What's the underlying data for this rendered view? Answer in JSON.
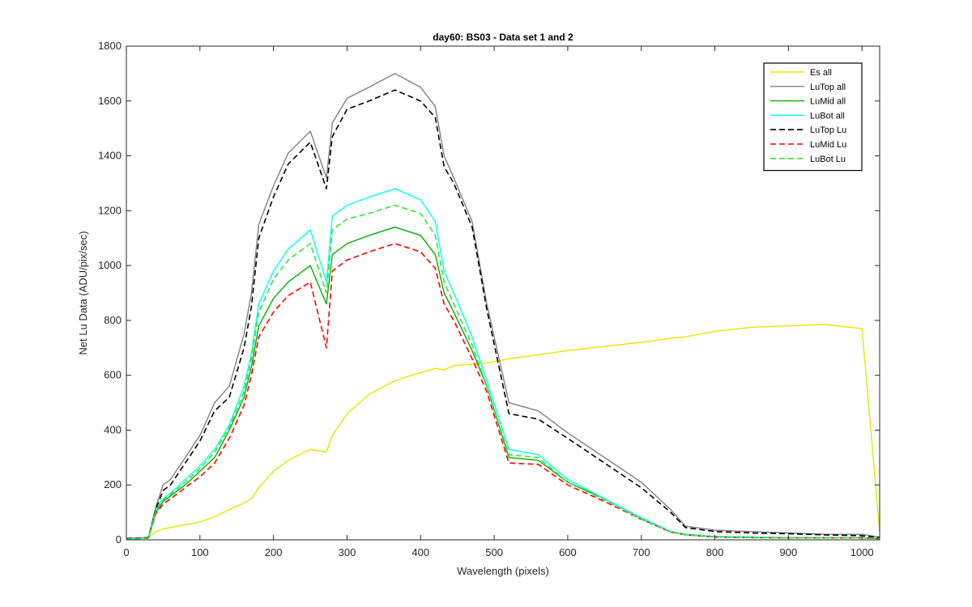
{
  "chart_data": {
    "type": "line",
    "title": "day60: BS03 - Data set 1 and 2",
    "xlabel": "Wavelength (pixels)",
    "ylabel": "Net Lu Data (ADU/pix/sec)",
    "xlim": [
      0,
      1024
    ],
    "ylim": [
      0,
      1800
    ],
    "xticks": [
      "0",
      "100",
      "200",
      "300",
      "400",
      "500",
      "600",
      "700",
      "800",
      "900",
      "1000"
    ],
    "yticks": [
      "0",
      "200",
      "400",
      "600",
      "800",
      "1000",
      "1200",
      "1400",
      "1600",
      "1800"
    ],
    "grid": false,
    "legend_position": "top-right",
    "x": [
      0,
      30,
      40,
      50,
      60,
      80,
      100,
      120,
      140,
      160,
      170,
      180,
      200,
      220,
      250,
      272,
      280,
      300,
      330,
      365,
      400,
      420,
      432,
      445,
      470,
      490,
      520,
      560,
      600,
      650,
      700,
      740,
      760,
      800,
      850,
      900,
      950,
      1000,
      1024
    ],
    "series": [
      {
        "name": "Es  all",
        "color": "#e6e600",
        "dash": "solid",
        "width": 1.4,
        "values": [
          5,
          8,
          30,
          40,
          45,
          55,
          65,
          85,
          110,
          135,
          150,
          190,
          250,
          290,
          330,
          320,
          380,
          460,
          530,
          580,
          610,
          625,
          620,
          635,
          640,
          645,
          660,
          675,
          690,
          705,
          720,
          735,
          740,
          760,
          775,
          780,
          785,
          770,
          30
        ]
      },
      {
        "name": "LuTop  all",
        "color": "#808080",
        "dash": "solid",
        "width": 1.4,
        "values": [
          5,
          8,
          120,
          200,
          220,
          300,
          380,
          500,
          560,
          750,
          900,
          1150,
          1290,
          1410,
          1490,
          1320,
          1520,
          1610,
          1650,
          1700,
          1650,
          1580,
          1400,
          1320,
          1160,
          860,
          500,
          470,
          390,
          300,
          210,
          110,
          50,
          35,
          30,
          25,
          20,
          20,
          10
        ]
      },
      {
        "name": "LuMid  all",
        "color": "#00b000",
        "dash": "solid",
        "width": 1.4,
        "values": [
          3,
          6,
          100,
          140,
          160,
          200,
          250,
          300,
          400,
          520,
          630,
          780,
          880,
          940,
          1000,
          860,
          1040,
          1080,
          1110,
          1140,
          1110,
          1040,
          900,
          830,
          690,
          560,
          300,
          290,
          210,
          150,
          80,
          30,
          20,
          12,
          10,
          8,
          8,
          8,
          5
        ]
      },
      {
        "name": "LuBot  all",
        "color": "#00ffff",
        "dash": "solid",
        "width": 1.4,
        "values": [
          3,
          6,
          110,
          150,
          170,
          220,
          270,
          330,
          420,
          560,
          680,
          860,
          980,
          1060,
          1130,
          940,
          1180,
          1220,
          1250,
          1280,
          1240,
          1160,
          980,
          900,
          740,
          580,
          330,
          310,
          220,
          150,
          80,
          30,
          20,
          12,
          10,
          8,
          8,
          8,
          5
        ]
      },
      {
        "name": "LuTop  Lu",
        "color": "#000000",
        "dash": "7,4",
        "width": 1.6,
        "values": [
          5,
          8,
          110,
          180,
          200,
          280,
          360,
          470,
          520,
          700,
          850,
          1100,
          1250,
          1370,
          1450,
          1280,
          1470,
          1570,
          1600,
          1640,
          1600,
          1540,
          1360,
          1300,
          1140,
          840,
          460,
          440,
          370,
          280,
          190,
          100,
          45,
          30,
          25,
          22,
          18,
          15,
          8
        ]
      },
      {
        "name": "LuMid  Lu",
        "color": "#ff0000",
        "dash": "7,4",
        "width": 1.6,
        "values": [
          3,
          6,
          95,
          130,
          150,
          190,
          230,
          280,
          370,
          490,
          600,
          740,
          830,
          890,
          940,
          700,
          980,
          1020,
          1050,
          1080,
          1050,
          990,
          860,
          800,
          660,
          540,
          280,
          275,
          200,
          140,
          75,
          28,
          18,
          10,
          8,
          7,
          7,
          7,
          4
        ]
      },
      {
        "name": "LuBot  Lu",
        "color": "#33e633",
        "dash": "7,4",
        "width": 1.6,
        "values": [
          3,
          6,
          105,
          145,
          165,
          210,
          260,
          320,
          410,
          540,
          660,
          830,
          950,
          1020,
          1080,
          900,
          1130,
          1170,
          1190,
          1220,
          1190,
          1110,
          940,
          860,
          710,
          560,
          310,
          300,
          210,
          145,
          75,
          28,
          18,
          10,
          8,
          7,
          7,
          7,
          4
        ]
      }
    ]
  }
}
